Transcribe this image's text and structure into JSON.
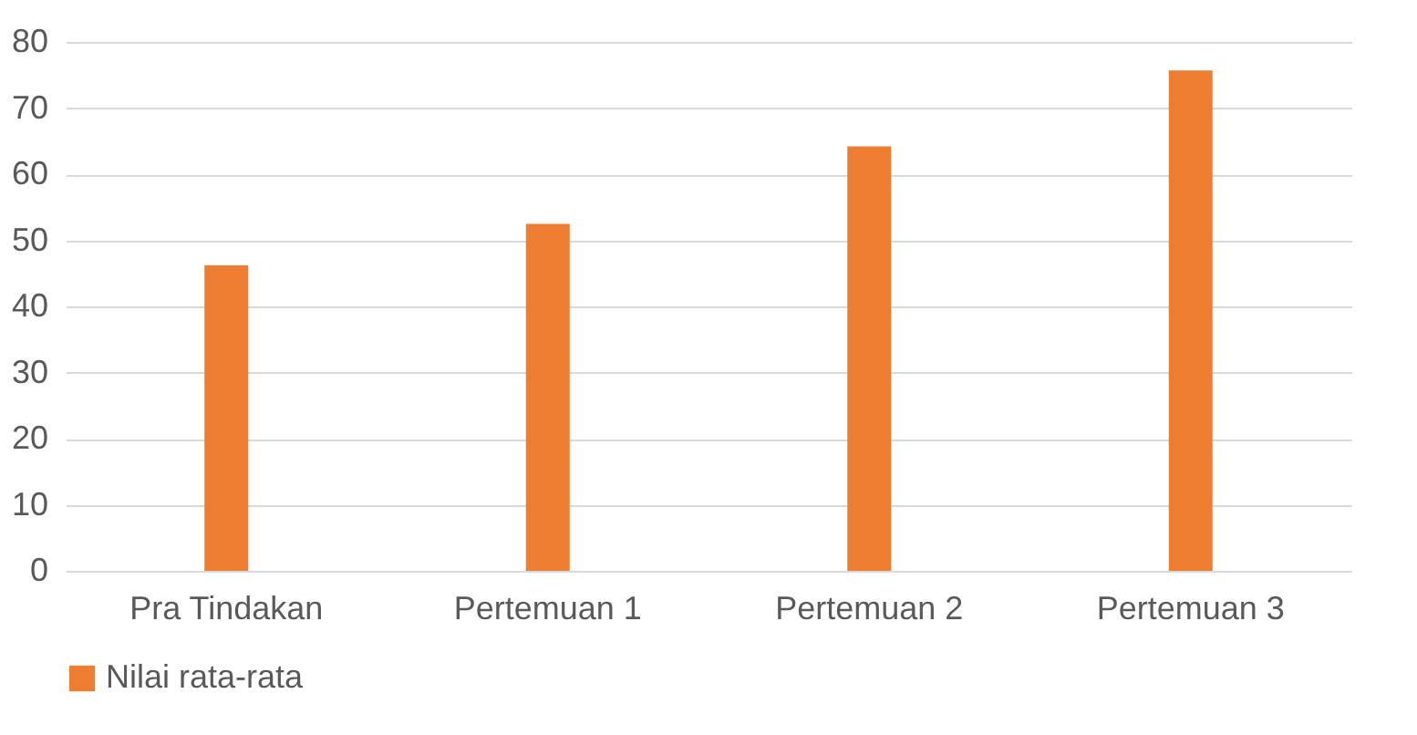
{
  "chart_data": {
    "type": "bar",
    "categories": [
      "Pra Tindakan",
      "Pertemuan 1",
      "Pertemuan 2",
      "Pertemuan 3"
    ],
    "series": [
      {
        "name": "Nilai rata-rata",
        "color": "#ed7d31",
        "values": [
          46.2,
          52.5,
          64.2,
          75.7
        ]
      }
    ],
    "ylim": [
      0,
      80
    ],
    "yticks": [
      0,
      10,
      20,
      30,
      40,
      50,
      60,
      70,
      80
    ],
    "grid": "y",
    "legend": "bottom"
  }
}
